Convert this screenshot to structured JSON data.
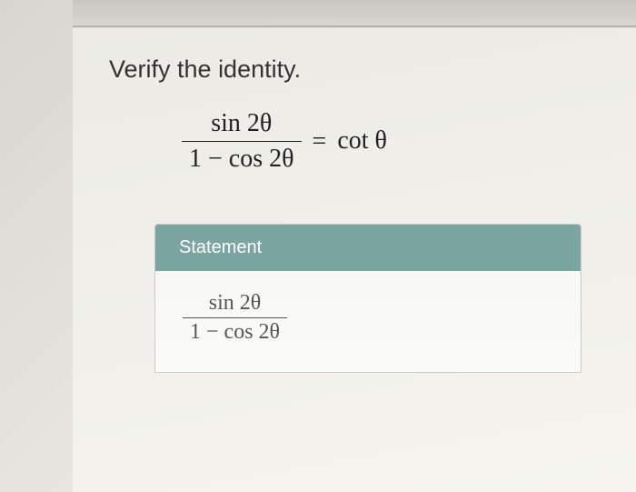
{
  "prompt": "Verify the identity.",
  "equation": {
    "lhs_numerator": "sin 2θ",
    "lhs_denominator": "1 − cos 2θ",
    "equals": "=",
    "rhs": "cot θ"
  },
  "table": {
    "header": "Statement",
    "row1": {
      "numerator": "sin 2θ",
      "denominator": "1 − cos 2θ"
    }
  },
  "styling": {
    "header_bg": "#7ba5a0",
    "header_text_color": "#ffffff",
    "page_bg": "#f0eee8",
    "text_color": "#333333",
    "equation_font": "Times New Roman",
    "prompt_fontsize": 27,
    "equation_fontsize": 28,
    "table_equation_fontsize": 24
  }
}
